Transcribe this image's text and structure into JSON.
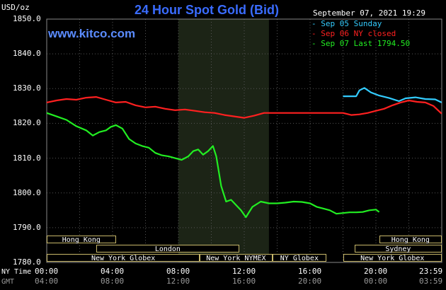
{
  "title": "24 Hour Spot Gold (Bid)",
  "unit_label": "USD/oz",
  "timestamp": "September 07, 2021 19:29",
  "watermark": "www.kitco.com",
  "legend": [
    {
      "label": "Sep 05 Sunday",
      "color": "#33ccff"
    },
    {
      "label": "Sep 06 NY closed",
      "color": "#ff2020"
    },
    {
      "label": "Sep 07 Last 1794.50",
      "color": "#22ee22"
    }
  ],
  "row_labels": {
    "ny_time": "NY Time",
    "gmt": "GMT"
  },
  "sessions": [
    {
      "label": "Hong Kong",
      "start": 0.0,
      "end": 4.2,
      "row": 0
    },
    {
      "label": "London",
      "start": 3.0,
      "end": 11.7,
      "row": 1
    },
    {
      "label": "New York Globex",
      "start": 0.0,
      "end": 9.3,
      "row": 2
    },
    {
      "label": "New York NYMEX",
      "start": 9.3,
      "end": 13.7,
      "row": 2
    },
    {
      "label": "NY Globex",
      "start": 13.7,
      "end": 17.0,
      "row": 2
    },
    {
      "label": "Hong Kong",
      "start": 20.2,
      "end": 24.0,
      "row": 0
    },
    {
      "label": "Sydney",
      "start": 18.7,
      "end": 24.0,
      "row": 1
    },
    {
      "label": "New York Globex",
      "start": 18.0,
      "end": 24.0,
      "row": 2
    }
  ],
  "chart_data": {
    "type": "line",
    "title": "24 Hour Spot Gold (Bid)",
    "ylabel": "USD/oz",
    "ylim": [
      1780,
      1850
    ],
    "yticks": [
      "1850.0",
      "1840.0",
      "1830.0",
      "1820.0",
      "1810.0",
      "1800.0",
      "1790.0",
      "1780.0"
    ],
    "xlim": [
      0,
      24
    ],
    "xticks_ny": [
      "00:00",
      "04:00",
      "08:00",
      "12:00",
      "16:00",
      "20:00",
      "23:59"
    ],
    "xticks_gmt": [
      "04:00",
      "08:00",
      "12:00",
      "16:00",
      "20:00",
      "00:00",
      "03:59"
    ],
    "shaded_hours": [
      8.0,
      13.5
    ],
    "grid": true,
    "series": [
      {
        "name": "Sep 05 Sunday",
        "color": "#33ccff",
        "x": [
          18.0,
          18.8,
          19.0,
          19.3,
          19.7,
          20.2,
          20.8,
          21.4,
          21.8,
          22.4,
          23.0,
          23.6,
          23.99
        ],
        "y": [
          1827.8,
          1827.8,
          1829.5,
          1830.2,
          1828.9,
          1828.0,
          1827.3,
          1826.4,
          1827.2,
          1827.5,
          1827.0,
          1826.9,
          1826.0
        ]
      },
      {
        "name": "Sep 06 NY closed",
        "color": "#ff2020",
        "x": [
          0.0,
          0.6,
          1.2,
          1.8,
          2.4,
          3.0,
          3.6,
          4.2,
          4.8,
          5.4,
          6.0,
          6.6,
          7.2,
          7.8,
          8.4,
          9.0,
          9.6,
          10.2,
          10.8,
          11.4,
          12.0,
          12.6,
          13.2,
          14.0,
          15.0,
          16.0,
          17.0,
          18.0,
          18.5,
          19.0,
          19.5,
          20.0,
          20.5,
          21.0,
          21.5,
          22.0,
          22.5,
          23.0,
          23.5,
          23.99
        ],
        "y": [
          1826.0,
          1826.6,
          1827.0,
          1826.8,
          1827.4,
          1827.6,
          1826.8,
          1826.0,
          1826.2,
          1825.2,
          1824.6,
          1824.8,
          1824.2,
          1823.8,
          1824.0,
          1823.6,
          1823.2,
          1823.0,
          1822.4,
          1822.0,
          1821.6,
          1822.2,
          1823.0,
          1823.0,
          1823.0,
          1823.0,
          1823.0,
          1823.0,
          1822.4,
          1822.6,
          1823.0,
          1823.6,
          1824.2,
          1825.2,
          1826.0,
          1826.6,
          1826.2,
          1826.0,
          1825.0,
          1822.8
        ]
      },
      {
        "name": "Sep 07 Last 1794.50",
        "color": "#22ee22",
        "x": [
          0.0,
          0.6,
          1.2,
          1.8,
          2.4,
          2.8,
          3.2,
          3.6,
          3.9,
          4.2,
          4.6,
          5.0,
          5.4,
          5.8,
          6.2,
          6.6,
          7.0,
          7.4,
          7.8,
          8.2,
          8.6,
          8.9,
          9.2,
          9.5,
          9.8,
          10.1,
          10.3,
          10.6,
          10.9,
          11.2,
          11.5,
          11.8,
          12.1,
          12.5,
          13.0,
          13.5,
          14.0,
          14.5,
          15.0,
          15.5,
          16.0,
          16.4,
          16.8,
          17.2,
          17.6,
          18.0,
          18.4,
          18.8,
          19.2,
          19.6,
          20.0,
          20.2
        ],
        "y": [
          1823.0,
          1822.0,
          1821.0,
          1819.2,
          1818.0,
          1816.5,
          1817.5,
          1818.0,
          1819.0,
          1819.5,
          1818.5,
          1815.5,
          1814.2,
          1813.5,
          1813.0,
          1811.5,
          1810.8,
          1810.5,
          1810.0,
          1809.5,
          1810.5,
          1812.0,
          1812.5,
          1811.0,
          1812.0,
          1813.5,
          1810.5,
          1802.0,
          1797.5,
          1798.0,
          1796.5,
          1795.0,
          1793.0,
          1796.0,
          1797.5,
          1797.0,
          1797.0,
          1797.2,
          1797.5,
          1797.4,
          1797.0,
          1796.0,
          1795.5,
          1795.0,
          1794.0,
          1794.2,
          1794.4,
          1794.4,
          1794.5,
          1795.0,
          1795.2,
          1794.5
        ]
      }
    ]
  }
}
